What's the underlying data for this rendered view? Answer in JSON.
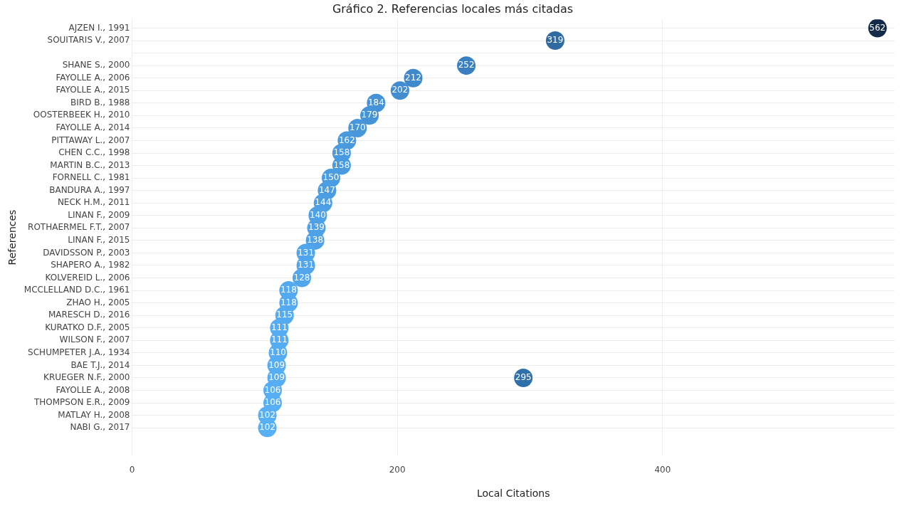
{
  "chart_data": {
    "type": "lollipop",
    "orientation": "horizontal",
    "title": "Gráfico 2. Referencias locales más citadas",
    "xlabel": "Local Citations",
    "ylabel": "References",
    "categories": [
      "AJZEN I., 1991",
      "SOUITARIS V., 2007",
      null,
      "SHANE S., 2000",
      "FAYOLLE A., 2006",
      "FAYOLLE A., 2015",
      "BIRD B., 1988",
      "OOSTERBEEK H., 2010",
      "FAYOLLE A., 2014",
      "PITTAWAY L., 2007",
      "CHEN C.C., 1998",
      "MARTIN B.C., 2013",
      "FORNELL C., 1981",
      "BANDURA A., 1997",
      "NECK H.M., 2011",
      "LINAN F., 2009",
      "ROTHAERMEL F.T., 2007",
      "LINAN F., 2015",
      "DAVIDSSON P., 2003",
      "SHAPERO A., 1982",
      "KOLVEREID L., 2006",
      "MCCLELLAND D.C., 1961",
      "ZHAO H., 2005",
      "MARESCH D., 2016",
      "KURATKO D.F., 2005",
      "WILSON F., 2007",
      "SCHUMPETER J.A., 1934",
      "BAE T.J., 2014",
      "KRUEGER N.F., 2000",
      "FAYOLLE A., 2008",
      "THOMPSON E.R., 2009",
      "MATLAY H., 2008",
      "NABI G., 2017"
    ],
    "series": [
      {
        "values": [
          562,
          319,
          null,
          252,
          212,
          202,
          184,
          179,
          170,
          162,
          158,
          158,
          150,
          147,
          144,
          140,
          139,
          138,
          131,
          131,
          128,
          118,
          118,
          115,
          111,
          111,
          110,
          109,
          109,
          106,
          106,
          102,
          102
        ],
        "colors": [
          "#132b48",
          "#2f6aa1",
          null,
          "#3a80c0",
          "#4089cb",
          "#428dd0",
          "#4592d6",
          "#4694d8",
          "#4797db",
          "#4899dd",
          "#4a9ae0",
          "#4a9ae0",
          "#4b9de2",
          "#4c9ee3",
          "#4d9fe5",
          "#4ea1e7",
          "#4ea1e7",
          "#4fa2e8",
          "#50a5eb",
          "#50a5eb",
          "#51a6ec",
          "#53aaf0",
          "#53aaf0",
          "#54abf1",
          "#55acf3",
          "#55acf3",
          "#55acf3",
          "#55adf3",
          "#55adf3",
          "#56aef4",
          "#56aef4",
          "#57aff6",
          "#57aff6"
        ]
      },
      {
        "values": [
          null,
          null,
          null,
          null,
          null,
          null,
          null,
          null,
          null,
          null,
          null,
          null,
          null,
          null,
          null,
          null,
          null,
          null,
          null,
          null,
          null,
          null,
          null,
          null,
          null,
          null,
          null,
          null,
          295,
          null,
          null,
          null,
          null
        ],
        "colors": [
          null,
          null,
          null,
          null,
          null,
          null,
          null,
          null,
          null,
          null,
          null,
          null,
          null,
          null,
          null,
          null,
          null,
          null,
          null,
          null,
          null,
          null,
          null,
          null,
          null,
          null,
          null,
          null,
          "#3070aa",
          null,
          null,
          null,
          null
        ]
      }
    ],
    "xlim": [
      0,
      575
    ],
    "xticks": [
      0,
      200,
      400
    ],
    "grid": true,
    "data_labels": true,
    "legend": false,
    "marker": "circle"
  }
}
